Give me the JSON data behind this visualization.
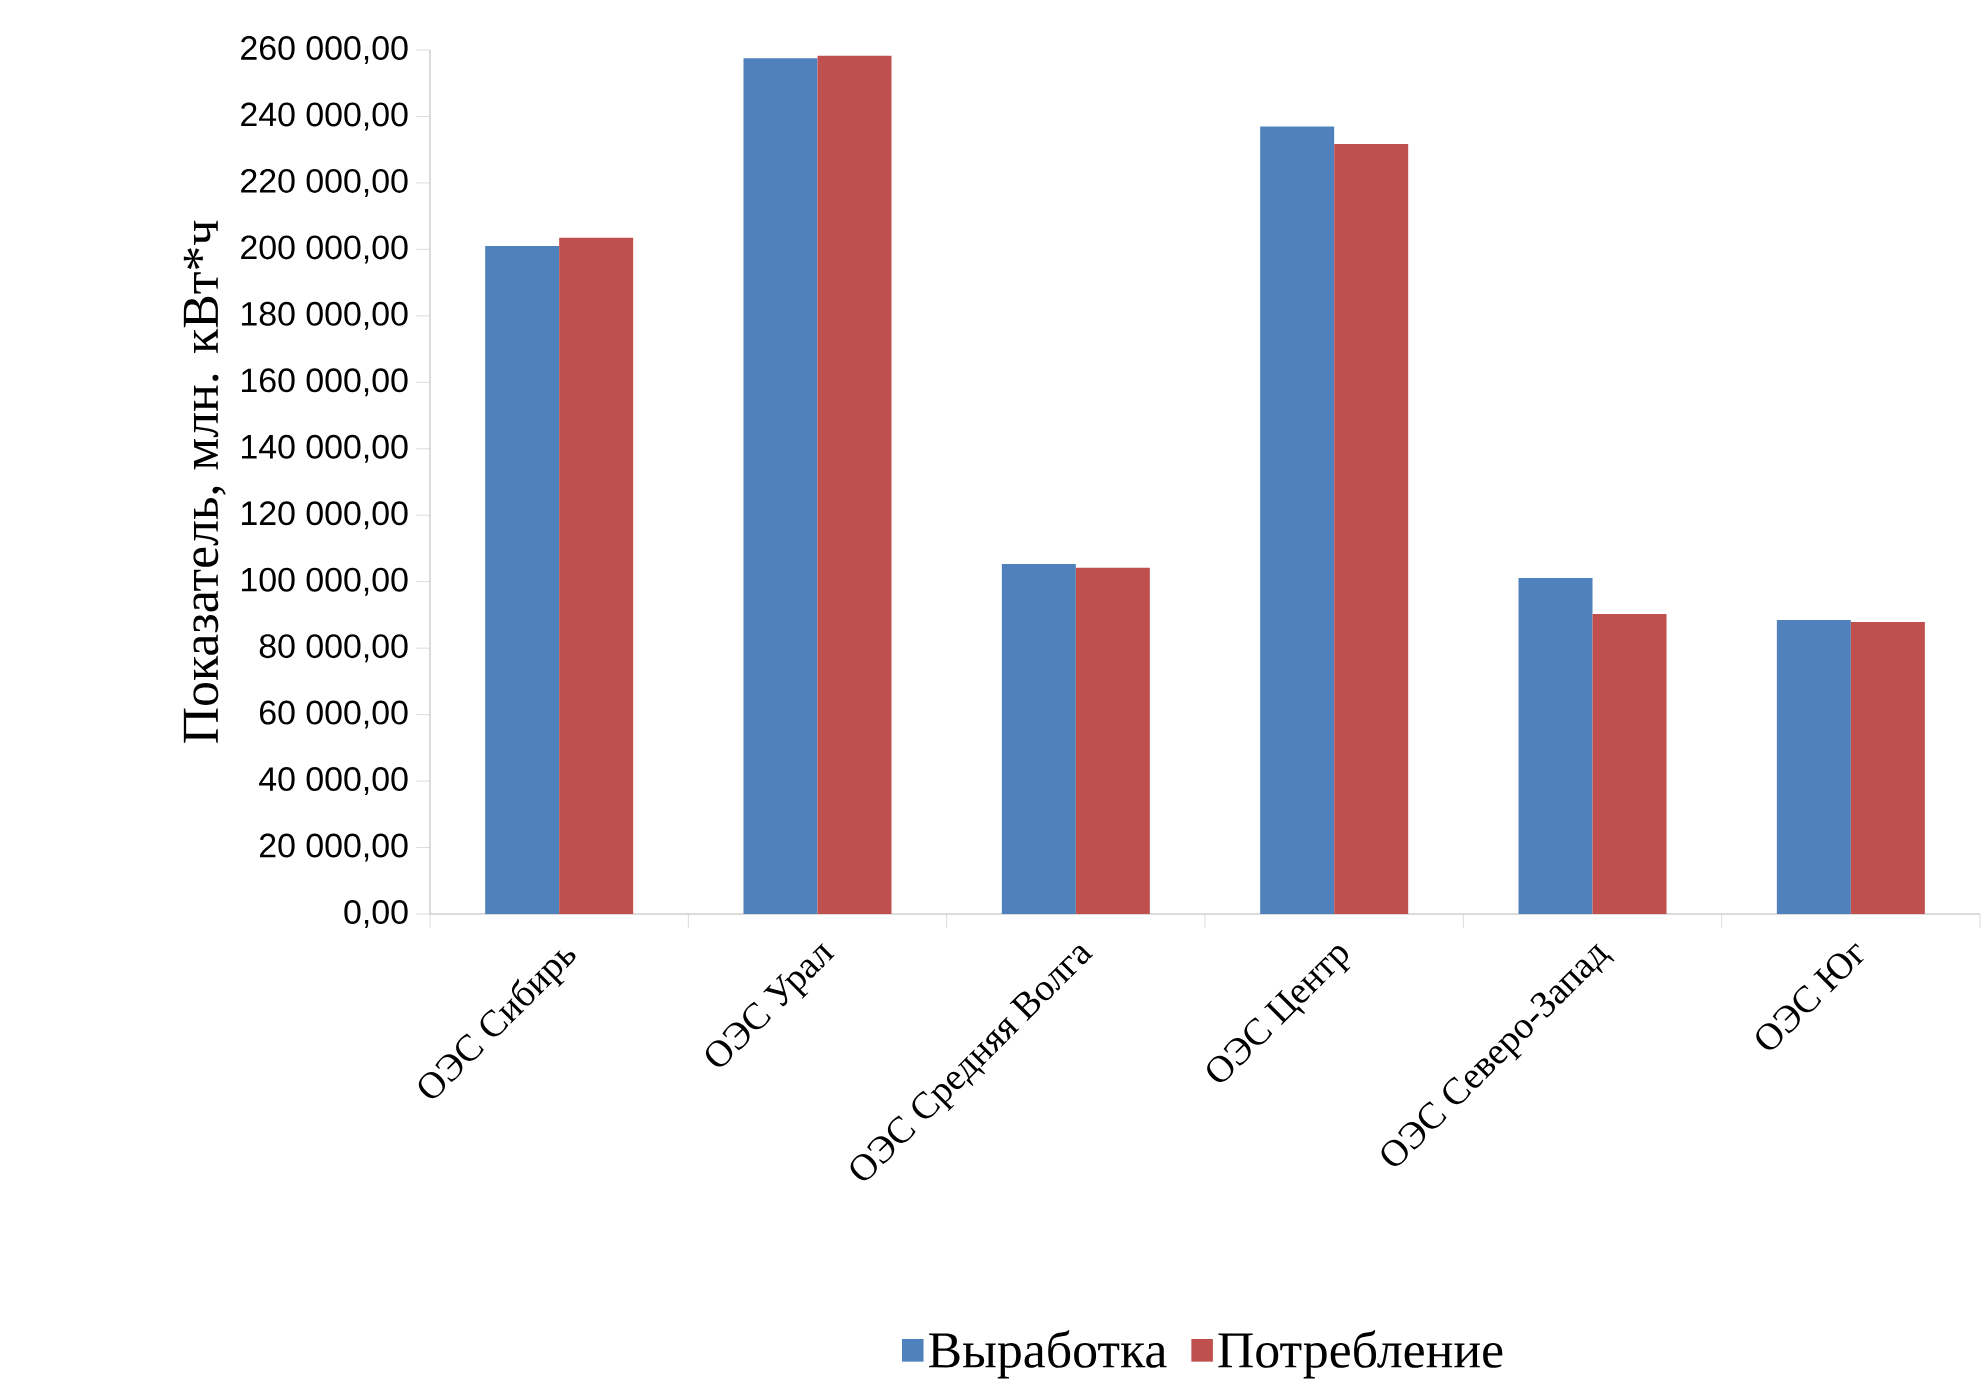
{
  "chart_data": {
    "type": "bar",
    "ylabel": "Показатель, млн. кВт*ч",
    "categories": [
      "ОЭС Сибирь",
      "ОЭС Урал",
      "ОЭС Средняя Волга",
      "ОЭС Центр",
      "ОЭС Северо-Запад",
      "ОЭС Юг"
    ],
    "series": [
      {
        "name": "Выработка",
        "color": "#4f81bd",
        "values": [
          201000,
          257500,
          105300,
          237000,
          101100,
          88500
        ]
      },
      {
        "name": "Потребление",
        "color": "#c0504d",
        "values": [
          203500,
          258300,
          104200,
          231700,
          90300,
          87900
        ]
      }
    ],
    "ylim": [
      0,
      260000
    ],
    "yticks": [
      {
        "value": 0,
        "label": "0,00"
      },
      {
        "value": 20000,
        "label": "20 000,00"
      },
      {
        "value": 40000,
        "label": "40 000,00"
      },
      {
        "value": 60000,
        "label": "60 000,00"
      },
      {
        "value": 80000,
        "label": "80 000,00"
      },
      {
        "value": 100000,
        "label": "100 000,00"
      },
      {
        "value": 120000,
        "label": "120 000,00"
      },
      {
        "value": 140000,
        "label": "140 000,00"
      },
      {
        "value": 160000,
        "label": "160 000,00"
      },
      {
        "value": 180000,
        "label": "180 000,00"
      },
      {
        "value": 200000,
        "label": "200 000,00"
      },
      {
        "value": 220000,
        "label": "220 000,00"
      },
      {
        "value": 240000,
        "label": "240 000,00"
      },
      {
        "value": 260000,
        "label": "260 000,00"
      }
    ],
    "grid": false,
    "legend": "bottom"
  }
}
